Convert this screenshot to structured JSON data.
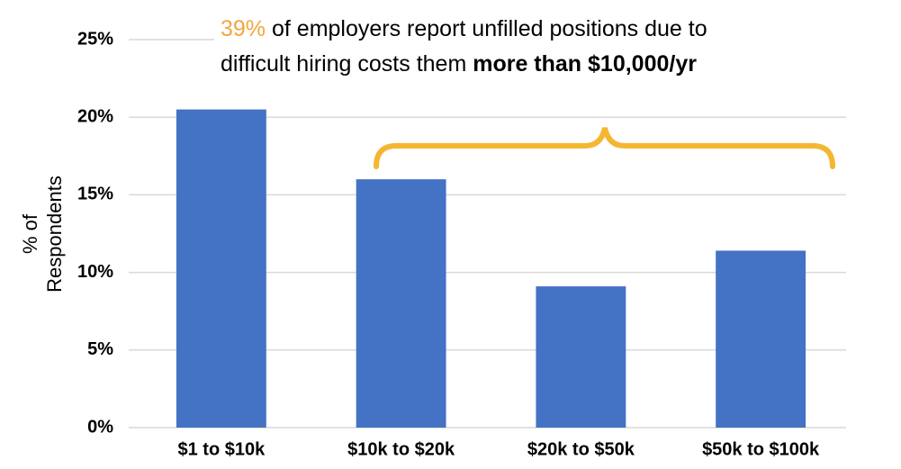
{
  "chart_data": {
    "type": "bar",
    "annotation": {
      "line1": [
        "39%",
        " of employers report unfilled positions due to"
      ],
      "line2": [
        "difficult hiring costs them ",
        "more than $10,000/yr"
      ]
    },
    "y_label": [
      "% of",
      "Respondents"
    ],
    "categories": [
      "$1 to $10k",
      "$10k to $20k",
      "$20k to $50k",
      "$50k to $100k"
    ],
    "values": [
      20.5,
      16,
      9.1,
      11.4
    ],
    "color": "#4472c4",
    "highlight_color": "#f4a540",
    "ylim": [
      0,
      25
    ],
    "yticks": [
      {
        "value": 0,
        "label": "0%"
      },
      {
        "value": 5,
        "label": "5%"
      },
      {
        "value": 10,
        "label": "10%"
      },
      {
        "value": 15,
        "label": "15%"
      },
      {
        "value": 20,
        "label": "20%"
      },
      {
        "value": 25,
        "label": "25%"
      }
    ],
    "grid": true
  }
}
